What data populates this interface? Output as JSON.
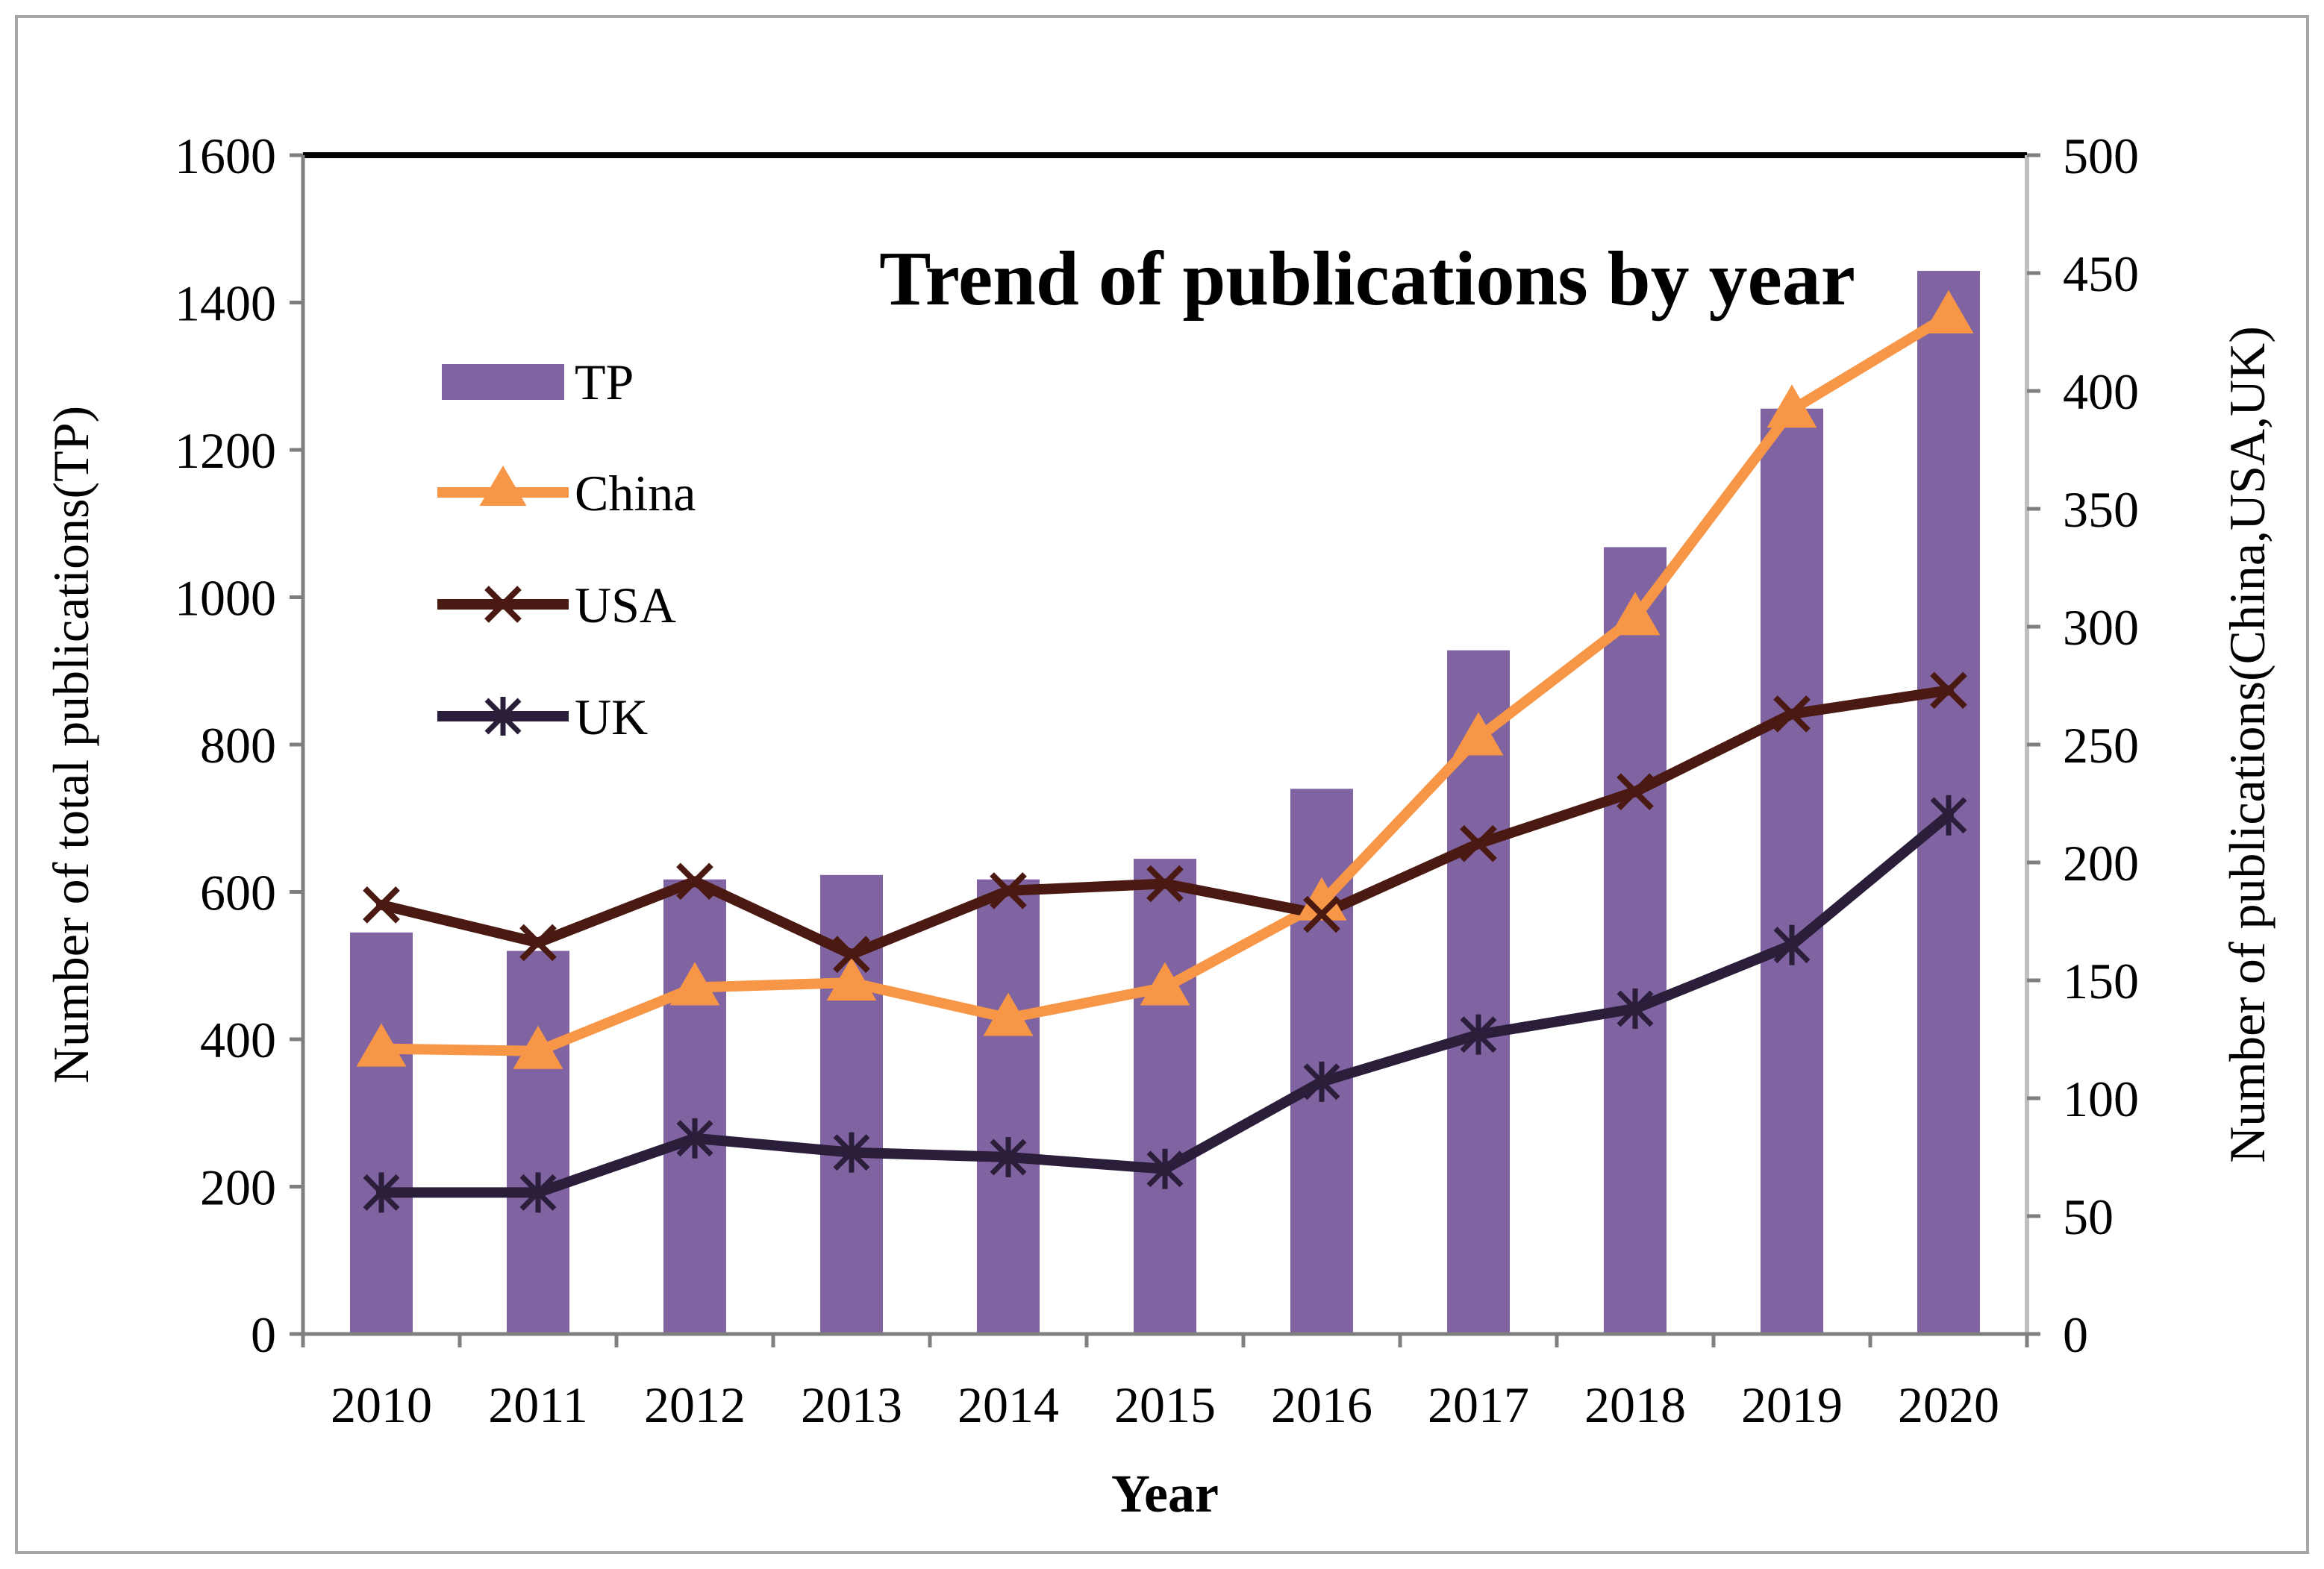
{
  "chart_data": {
    "type": "bar+line",
    "title": "Trend of publications by year",
    "xlabel": "Year",
    "ylabel_left": "Number of total publications(TP)",
    "ylabel_right": "Number of  publications(China,USA,UK)",
    "categories": [
      "2010",
      "2011",
      "2012",
      "2013",
      "2014",
      "2015",
      "2016",
      "2017",
      "2018",
      "2019",
      "2020"
    ],
    "ylim_left": [
      0,
      1600
    ],
    "yticks_left": [
      "0",
      "200",
      "400",
      "600",
      "800",
      "1000",
      "1200",
      "1400",
      "1600"
    ],
    "ylim_right": [
      0,
      500
    ],
    "yticks_right": [
      "0",
      "50",
      "100",
      "150",
      "200",
      "250",
      "300",
      "350",
      "400",
      "450",
      "500"
    ],
    "series": [
      {
        "name": "TP",
        "kind": "bar",
        "axis": "left",
        "color": "#8064A2",
        "values": [
          545,
          520,
          617,
          623,
          617,
          645,
          740,
          928,
          1068,
          1256,
          1443
        ]
      },
      {
        "name": "China",
        "kind": "line",
        "axis": "right",
        "color": "#F79646",
        "marker": "triangle",
        "values": [
          121,
          120,
          147,
          149,
          134,
          147,
          183,
          253,
          304,
          392,
          432
        ]
      },
      {
        "name": "USA",
        "kind": "line",
        "axis": "right",
        "color": "#4A1A12",
        "marker": "x",
        "values": [
          182,
          166,
          192,
          161,
          188,
          191,
          178,
          208,
          230,
          263,
          273
        ]
      },
      {
        "name": "UK",
        "kind": "line",
        "axis": "right",
        "color": "#2B1E3A",
        "marker": "asterisk",
        "values": [
          60,
          60,
          83,
          77,
          75,
          70,
          107,
          127,
          138,
          165,
          220
        ]
      }
    ],
    "legend": {
      "position": "upper-left-inside",
      "entries": [
        "TP",
        "China",
        "USA",
        "UK"
      ]
    },
    "grid": false
  }
}
